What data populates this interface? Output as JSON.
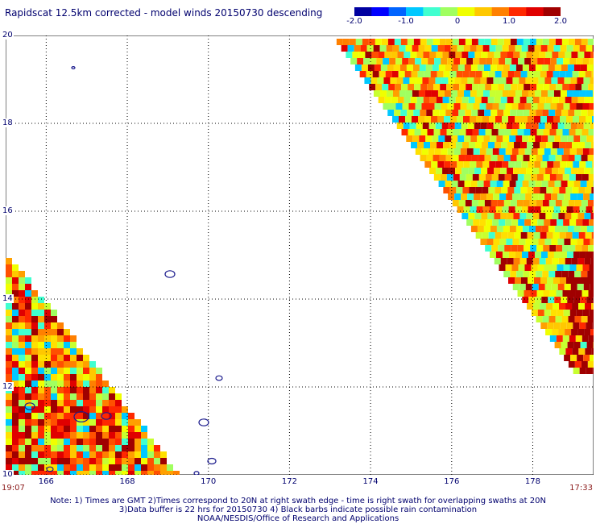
{
  "title": "Rapidscat 12.5km corrected - model winds 20150730 descending",
  "colorbar": {
    "ticks": [
      "-2.0",
      "-1.0",
      "0",
      "1.0",
      "2.0"
    ],
    "tick_values": [
      -2,
      -1,
      0,
      1,
      2
    ],
    "colors": [
      "#0000a0",
      "#0000ff",
      "#0064ff",
      "#00c8ff",
      "#40ffd0",
      "#a0ff60",
      "#f0ff00",
      "#ffc800",
      "#ff8000",
      "#ff2800",
      "#e00000",
      "#a00000"
    ]
  },
  "map": {
    "lon_range": [
      165,
      179.5
    ],
    "lat_range": [
      10,
      20
    ],
    "lon_ticks": [
      "166",
      "168",
      "170",
      "172",
      "174",
      "176",
      "178"
    ],
    "lat_ticks": [
      "20",
      "18",
      "16",
      "14",
      "12",
      "10"
    ],
    "lat_tick_values": [
      20,
      18,
      16,
      14,
      12,
      10
    ]
  },
  "time_left": "19:07",
  "time_right": "17:33",
  "notes": [
    "Note: 1) Times are GMT 2)Times correspond to 20N at right swath edge - time is right swath for overlapping swaths at 20N",
    "3)Data buffer is 22 hrs for 20150730 4) Black barbs indicate possible rain contamination",
    "NOAA/NESDIS/Office of Research and Applications"
  ]
}
